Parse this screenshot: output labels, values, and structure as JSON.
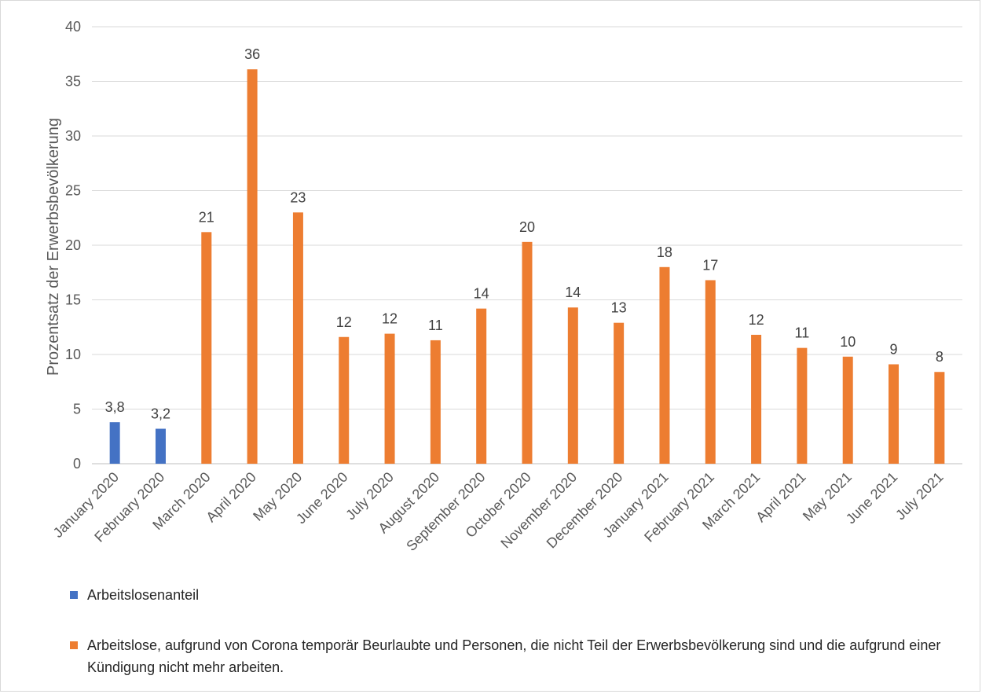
{
  "chart_data": {
    "type": "bar",
    "categories": [
      "January 2020",
      "February 2020",
      "March 2020",
      "April 2020",
      "May 2020",
      "June 2020",
      "July 2020",
      "August 2020",
      "September 2020",
      "October 2020",
      "November 2020",
      "December 2020",
      "January 2021",
      "February 2021",
      "March 2021",
      "April 2021",
      "May 2021",
      "June 2021",
      "July 2021"
    ],
    "series": [
      {
        "name": "Arbeitslosenanteil",
        "color": "#4472c4",
        "values": [
          3.8,
          3.2,
          null,
          null,
          null,
          null,
          null,
          null,
          null,
          null,
          null,
          null,
          null,
          null,
          null,
          null,
          null,
          null,
          null
        ],
        "labels": [
          "3,8",
          "3,2",
          "",
          "",
          "",
          "",
          "",
          "",
          "",
          "",
          "",
          "",
          "",
          "",
          "",
          "",
          "",
          "",
          ""
        ]
      },
      {
        "name": "Arbeitslose, aufgrund von Corona temporär Beurlaubte und Personen, die nicht Teil der Erwerbsbevölkerung sind und die aufgrund einer Kündigung nicht mehr arbeiten.",
        "color": "#ed7d31",
        "values": [
          null,
          null,
          21.2,
          36.1,
          23.0,
          11.6,
          11.9,
          11.3,
          14.2,
          20.3,
          14.3,
          12.9,
          18.0,
          16.8,
          11.8,
          10.6,
          9.8,
          9.1,
          8.4
        ],
        "labels": [
          "",
          "",
          "21",
          "36",
          "23",
          "12",
          "12",
          "11",
          "14",
          "20",
          "14",
          "13",
          "18",
          "17",
          "12",
          "11",
          "10",
          "9",
          "8"
        ]
      }
    ],
    "title": "",
    "xlabel": "",
    "ylabel": "Prozentsatz der Erwerbsbevölkerung",
    "ylim": [
      0,
      40
    ],
    "yticks": [
      0,
      5,
      10,
      15,
      20,
      25,
      30,
      35,
      40
    ],
    "grid": true,
    "legend_position": "bottom"
  }
}
